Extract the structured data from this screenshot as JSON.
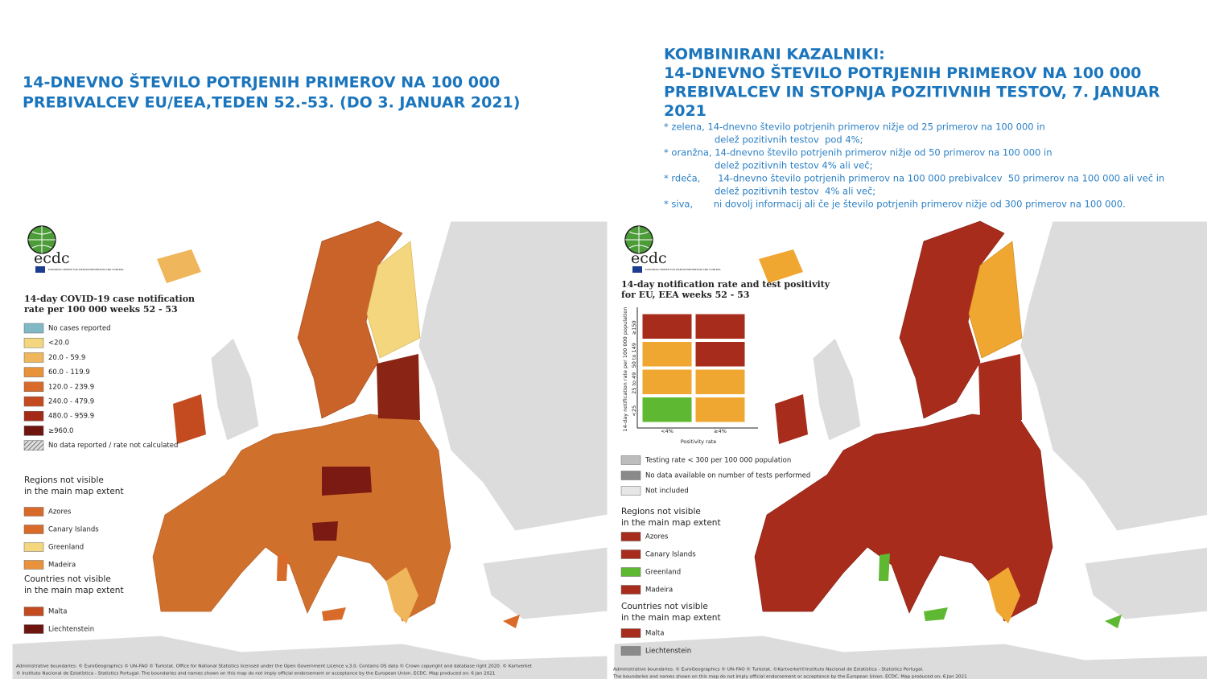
{
  "left_panel": {
    "title": [
      "14-DNEVNO ŠTEVILO POTRJENIH PRIMEROV NA 100 000",
      "PREBIVALCEV EU/EEA,TEDEN 52.-53. (DO 3. JANUAR 2021)"
    ],
    "logo": {
      "name": "ecdc",
      "subtitle": "EUROPEAN CENTRE FOR DISEASE PREVENTION AND CONTROL"
    },
    "legend": {
      "title": [
        "14-day COVID-19 case notification",
        "rate per 100 000 weeks 52 - 53"
      ],
      "items": [
        {
          "label": "No cases reported",
          "color": "#7fb9c6"
        },
        {
          "label": "<20.0",
          "color": "#f3d67e"
        },
        {
          "label": "20.0 - 59.9",
          "color": "#efb65b"
        },
        {
          "label": "60.0 - 119.9",
          "color": "#e8933c"
        },
        {
          "label": "120.0 - 239.9",
          "color": "#d96b2a"
        },
        {
          "label": "240.0 - 479.9",
          "color": "#c44b1f"
        },
        {
          "label": "480.0 - 959.9",
          "color": "#a32b15"
        },
        {
          "label": "≥960.0",
          "color": "#6e1510"
        },
        {
          "label": "No data reported / rate not calculated"
        }
      ]
    },
    "regions": {
      "heading": [
        "Regions not visible",
        "in the main map extent"
      ],
      "items": [
        {
          "label": "Azores",
          "color": "#d96b2a"
        },
        {
          "label": "Canary Islands",
          "color": "#d96b2a"
        },
        {
          "label": "Greenland",
          "color": "#f3d67e"
        },
        {
          "label": "Madeira",
          "color": "#e8933c"
        }
      ]
    },
    "countries": {
      "heading": [
        "Countries not visible",
        "in the main map extent"
      ],
      "items": [
        {
          "label": "Malta",
          "color": "#c44b1f"
        },
        {
          "label": "Liechtenstein",
          "color": "#6e1510"
        }
      ]
    },
    "footer": [
      "Administrative boundaries: © EuroGeographics © UN–FAO © Turkstat. Office for National Statistics licensed under the Open Government Licence v.3.0. Contains OS data © Crown copyright and database right 2020. © Kartverket",
      "© Instituto Nacional de Estatística - Statistics Portugal. The boundaries and names shown on this map do not imply official endorsement or acceptance by the European Union. ECDC. Map produced on: 6 Jan 2021"
    ]
  },
  "right_panel": {
    "title": [
      "KOMBINIRANI KAZALNIKI:",
      "14-DNEVNO ŠTEVILO POTRJENIH PRIMEROV NA 100 000",
      "PREBIVALCEV IN STOPNJA POZITIVNIH TESTOV, 7. JANUAR",
      "2021"
    ],
    "notes": [
      [
        "* zelena, 14-dnevno število potrjenih primerov nižje od 25 primerov na 100 000 in",
        "delež pozitivnih testov  pod 4%;"
      ],
      [
        "* oranžna, 14-dnevno število potrjenih primerov nižje od 50 primerov na 100 000 in",
        "delež pozitivnih testov 4% ali več;"
      ],
      [
        "* rdeča,      14-dnevno število potrjenih primerov na 100 000 prebivalcev  50 primerov na 100 000 ali več in",
        "delež pozitivnih testov  4% ali več;"
      ],
      [
        "* siva,       ni dovolj informacij ali če je število potrjenih primerov nižje od 300 primerov na 100 000."
      ]
    ],
    "logo": {
      "name": "ecdc",
      "subtitle": "EUROPEAN CENTRE FOR DISEASE PREVENTION AND CONTROL"
    },
    "legend": {
      "title": [
        "14-day notification rate and test positivity",
        "for EU, EEA weeks 52 - 53"
      ],
      "y_axis_label": "14-day notification rate per 100 000 population",
      "row_labels": [
        "≥150",
        "50 to 149",
        "25 to 49",
        "<25"
      ],
      "col_labels": [
        "<4%",
        "≥4%"
      ],
      "x_axis_label": "Positivity rate",
      "cells": [
        [
          "#a82c1c",
          "#a82c1c"
        ],
        [
          "#f0a732",
          "#a82c1c"
        ],
        [
          "#f0a732",
          "#f0a732"
        ],
        [
          "#5fb832",
          "#f0a732"
        ]
      ],
      "items": [
        {
          "label": "Testing rate < 300 per 100 000 population",
          "color": "#bdbdbd"
        },
        {
          "label": "No data available on number of tests performed",
          "color": "#8a8a8a"
        },
        {
          "label": "Not included",
          "color": "#e6e6e6"
        }
      ]
    },
    "regions": {
      "heading": [
        "Regions not visible",
        "in the main map extent"
      ],
      "items": [
        {
          "label": "Azores",
          "color": "#a82c1c"
        },
        {
          "label": "Canary Islands",
          "color": "#a82c1c"
        },
        {
          "label": "Greenland",
          "color": "#5fb832"
        },
        {
          "label": "Madeira",
          "color": "#a82c1c"
        }
      ]
    },
    "countries": {
      "heading": [
        "Countries not visible",
        "in the main map extent"
      ],
      "items": [
        {
          "label": "Malta",
          "color": "#a82c1c"
        },
        {
          "label": "Liechtenstein",
          "color": "#8a8a8a"
        }
      ]
    },
    "footer": [
      "Administrative boundaries: © EuroGeographics © UN–FAO © Turkstat. ©Kartverket©Instituto Nacional de Estatística - Statistics Portugal.",
      "The boundaries and names shown on this map do not imply official endorsement or acceptance by the European Union. ECDC. Map produced on: 6 Jan 2021"
    ]
  }
}
